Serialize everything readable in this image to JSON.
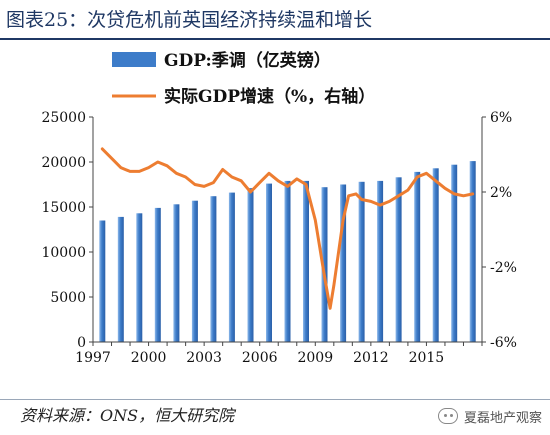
{
  "title": "图表25：次贷危机前英国经济持续温和增长",
  "source": "资料来源：ONS，恒大研究院",
  "watermark": "夏磊地产观察",
  "colors": {
    "bar": "#3d7cc9",
    "bar_light": "#8cb8ea",
    "line": "#ed7d31",
    "title": "#1f3864"
  },
  "chart_data": {
    "type": "bar+line",
    "x": [
      1997,
      1998,
      1999,
      2000,
      2001,
      2002,
      2003,
      2004,
      2005,
      2006,
      2007,
      2008,
      2009,
      2010,
      2011,
      2012,
      2013,
      2014,
      2015,
      2016,
      2017
    ],
    "x_tick_labels": [
      "1997",
      "2000",
      "2003",
      "2006",
      "2009",
      "2012",
      "2015"
    ],
    "legend_position": "top-left",
    "series": [
      {
        "name": "GDP:季调（亿英镑）",
        "type": "bar",
        "axis": "left",
        "values": [
          13500,
          13900,
          14300,
          14900,
          15300,
          15700,
          16200,
          16600,
          17100,
          17600,
          17900,
          17900,
          17200,
          17500,
          17800,
          17900,
          18300,
          18900,
          19300,
          19700,
          20100
        ]
      }
    ],
    "line_series": {
      "name": "实际GDP增速（%，右轴）",
      "type": "line",
      "axis": "right",
      "points": [
        [
          1997.0,
          4.3
        ],
        [
          1997.5,
          3.8
        ],
        [
          1998.0,
          3.3
        ],
        [
          1998.5,
          3.1
        ],
        [
          1999.0,
          3.1
        ],
        [
          1999.5,
          3.3
        ],
        [
          2000.0,
          3.6
        ],
        [
          2000.5,
          3.4
        ],
        [
          2001.0,
          3.0
        ],
        [
          2001.5,
          2.8
        ],
        [
          2002.0,
          2.4
        ],
        [
          2002.5,
          2.3
        ],
        [
          2003.0,
          2.5
        ],
        [
          2003.5,
          3.2
        ],
        [
          2004.0,
          2.8
        ],
        [
          2004.5,
          2.6
        ],
        [
          2005.0,
          2.0
        ],
        [
          2005.5,
          2.5
        ],
        [
          2006.0,
          3.0
        ],
        [
          2006.5,
          2.6
        ],
        [
          2007.0,
          2.3
        ],
        [
          2007.5,
          2.7
        ],
        [
          2008.0,
          2.4
        ],
        [
          2008.5,
          0.5
        ],
        [
          2009.0,
          -2.5
        ],
        [
          2009.3,
          -4.2
        ],
        [
          2009.5,
          -3.0
        ],
        [
          2010.0,
          0.5
        ],
        [
          2010.3,
          1.8
        ],
        [
          2010.7,
          1.9
        ],
        [
          2011.0,
          1.6
        ],
        [
          2011.5,
          1.5
        ],
        [
          2012.0,
          1.3
        ],
        [
          2012.5,
          1.5
        ],
        [
          2013.0,
          1.8
        ],
        [
          2013.5,
          2.1
        ],
        [
          2014.0,
          2.8
        ],
        [
          2014.5,
          3.0
        ],
        [
          2015.0,
          2.6
        ],
        [
          2015.5,
          2.2
        ],
        [
          2016.0,
          1.9
        ],
        [
          2016.5,
          1.8
        ],
        [
          2017.0,
          1.9
        ]
      ]
    },
    "left_axis": {
      "min": 0,
      "max": 25000,
      "step": 5000,
      "ticks": [
        "0",
        "5000",
        "10000",
        "15000",
        "20000",
        "25000"
      ]
    },
    "right_axis": {
      "min": -6,
      "max": 6,
      "step": 4,
      "ticks": [
        "-6%",
        "-2%",
        "2%",
        "6%"
      ]
    },
    "grid": false
  }
}
